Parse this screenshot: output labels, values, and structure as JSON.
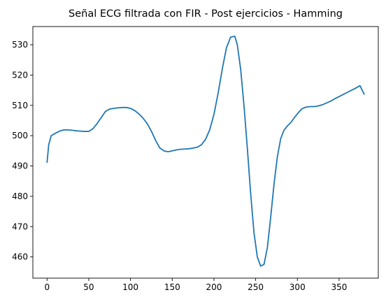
{
  "chart_data": {
    "type": "line",
    "title": "Señal ECG filtrada con FIR - Post ejercicios - Hamming",
    "xlabel": "",
    "ylabel": "",
    "xlim": [
      -17,
      397
    ],
    "ylim": [
      453,
      536
    ],
    "xticks": [
      0,
      50,
      100,
      150,
      200,
      250,
      300,
      350
    ],
    "yticks": [
      460,
      470,
      480,
      490,
      500,
      510,
      520,
      530
    ],
    "grid": false,
    "line_color": "#1f77b4",
    "series": [
      {
        "x": [
          0,
          2,
          5,
          10,
          15,
          20,
          25,
          30,
          35,
          40,
          45,
          50,
          55,
          60,
          65,
          70,
          75,
          80,
          85,
          90,
          95,
          100,
          105,
          110,
          115,
          120,
          125,
          130,
          135,
          140,
          145,
          150,
          155,
          160,
          165,
          170,
          175,
          180,
          185,
          190,
          195,
          200,
          205,
          210,
          215,
          220,
          225,
          228,
          232,
          236,
          240,
          244,
          248,
          252,
          256,
          260,
          264,
          268,
          272,
          276,
          280,
          284,
          288,
          292,
          296,
          300,
          305,
          310,
          315,
          320,
          325,
          330,
          335,
          340,
          345,
          350,
          355,
          360,
          365,
          370,
          375,
          380
        ],
        "values": [
          491.2,
          497.0,
          500.0,
          500.8,
          501.5,
          501.9,
          501.9,
          501.8,
          501.6,
          501.5,
          501.4,
          501.4,
          502.3,
          504.0,
          506.0,
          508.0,
          508.8,
          509.0,
          509.2,
          509.3,
          509.3,
          509.0,
          508.3,
          507.2,
          505.8,
          504.0,
          501.5,
          498.5,
          496.0,
          495.0,
          494.7,
          495.0,
          495.3,
          495.5,
          495.6,
          495.7,
          495.9,
          496.2,
          497.0,
          498.8,
          502.0,
          507.0,
          514.0,
          522.0,
          529.0,
          532.5,
          532.8,
          530.0,
          522.0,
          510.0,
          496.0,
          481.0,
          468.0,
          460.0,
          457.0,
          457.5,
          463.0,
          473.0,
          484.0,
          493.0,
          499.0,
          501.8,
          503.2,
          504.3,
          505.8,
          507.2,
          508.8,
          509.4,
          509.6,
          509.6,
          509.8,
          510.2,
          510.8,
          511.4,
          512.2,
          512.9,
          513.6,
          514.3,
          515.0,
          515.7,
          516.5,
          513.7
        ]
      }
    ]
  }
}
